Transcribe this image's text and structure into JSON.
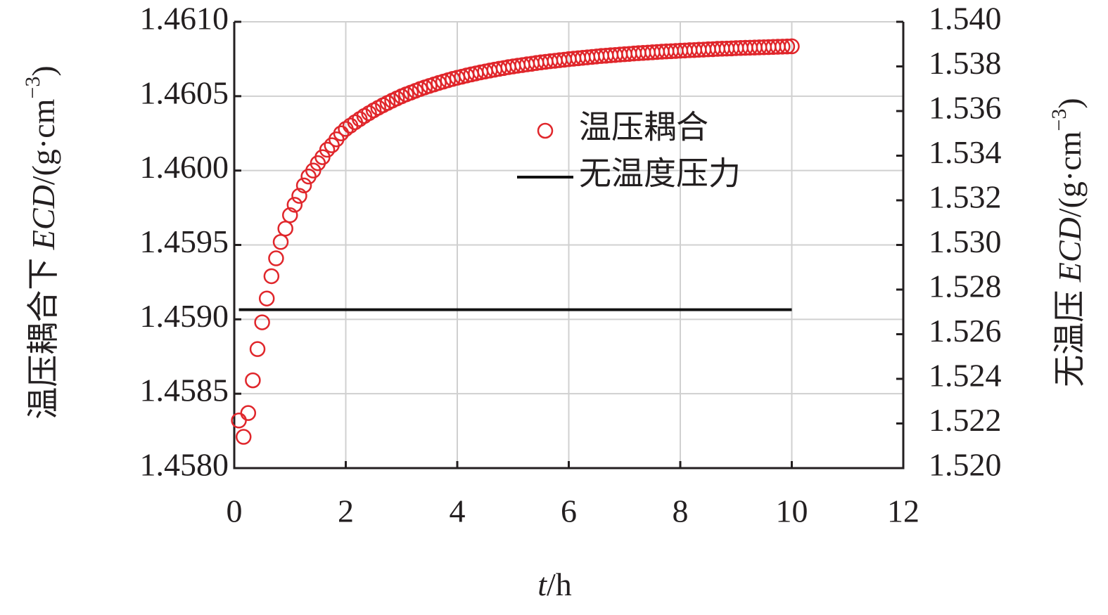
{
  "chart_data": {
    "type": "scatter",
    "x_label": [
      "t",
      "/h"
    ],
    "y_label": [
      "温压耦合下 ",
      "ECD",
      "/(g·cm",
      "−3",
      ")"
    ],
    "y2_label": [
      "无温压 ",
      "ECD",
      "/(g·cm",
      "−3",
      ")"
    ],
    "xlim": [
      0,
      12
    ],
    "xticks": [
      0,
      2,
      4,
      6,
      8,
      10,
      12
    ],
    "ylim": [
      1.458,
      1.461
    ],
    "yticks": [
      {
        "value": 1.458,
        "label": "1.4580"
      },
      1.4585,
      {
        "value": 1.459,
        "label": "1.4590"
      },
      1.4595,
      {
        "value": 1.46,
        "label": "1.4600"
      },
      1.4605,
      {
        "value": 1.461,
        "label": "1.4610"
      }
    ],
    "y2lim": [
      1.52,
      1.54
    ],
    "y2ticks": [
      {
        "value": 1.52,
        "label": "1.520"
      },
      1.522,
      1.524,
      1.526,
      1.528,
      {
        "value": 1.53,
        "label": "1.530"
      },
      1.532,
      1.534,
      1.536,
      1.538,
      {
        "value": 1.54,
        "label": "1.540"
      }
    ],
    "grid": true,
    "legend": "center",
    "series": [
      {
        "name": "温压耦合",
        "color": "#e0262b",
        "marker": "circle",
        "x": [
          0.083,
          0.167,
          0.25,
          0.333,
          0.417,
          0.5,
          0.583,
          0.667,
          0.75,
          0.833,
          0.917,
          1,
          1.083,
          1.167,
          1.25,
          1.333,
          1.417,
          1.5,
          1.583,
          1.667,
          1.75,
          1.833,
          1.917,
          2,
          2.083,
          2.167,
          2.25,
          2.333,
          2.417,
          2.5,
          2.583,
          2.667,
          2.75,
          2.833,
          2.917,
          3,
          3.083,
          3.167,
          3.25,
          3.333,
          3.417,
          3.5,
          3.583,
          3.667,
          3.75,
          3.833,
          3.917,
          4,
          4.083,
          4.167,
          4.25,
          4.333,
          4.417,
          4.5,
          4.583,
          4.667,
          4.75,
          4.833,
          4.917,
          5,
          5.083,
          5.167,
          5.25,
          5.333,
          5.417,
          5.5,
          5.583,
          5.667,
          5.75,
          5.833,
          5.917,
          6,
          6.083,
          6.167,
          6.25,
          6.333,
          6.417,
          6.5,
          6.583,
          6.667,
          6.75,
          6.833,
          6.917,
          7,
          7.083,
          7.167,
          7.25,
          7.333,
          7.417,
          7.5,
          7.583,
          7.667,
          7.75,
          7.833,
          7.917,
          8,
          8.083,
          8.167,
          8.25,
          8.333,
          8.417,
          8.5,
          8.583,
          8.667,
          8.75,
          8.833,
          8.917,
          9,
          9.083,
          9.167,
          9.25,
          9.333,
          9.417,
          9.5,
          9.583,
          9.667,
          9.75,
          9.833,
          9.917,
          10
        ],
        "values": [
          1.45832,
          1.45821,
          1.45837,
          1.45859,
          1.4588,
          1.45898,
          1.45914,
          1.45929,
          1.45941,
          1.45952,
          1.45961,
          1.4597,
          1.45977,
          1.45983,
          1.4599,
          1.45996,
          1.46,
          1.46005,
          1.46009,
          1.46014,
          1.46017,
          1.46021,
          1.46025,
          1.46028,
          1.460302,
          1.460325,
          1.460346,
          1.460367,
          1.460386,
          1.460405,
          1.460422,
          1.460439,
          1.460455,
          1.46047,
          1.460485,
          1.460499,
          1.460512,
          1.460524,
          1.460536,
          1.460548,
          1.460559,
          1.460569,
          1.460579,
          1.460589,
          1.460598,
          1.460607,
          1.460616,
          1.460624,
          1.460631,
          1.460639,
          1.460646,
          1.460653,
          1.46066,
          1.460666,
          1.460672,
          1.460678,
          1.460684,
          1.460689,
          1.460695,
          1.4607,
          1.460705,
          1.460709,
          1.460714,
          1.460718,
          1.460723,
          1.460727,
          1.460731,
          1.460735,
          1.460738,
          1.460742,
          1.460745,
          1.460749,
          1.460752,
          1.460755,
          1.460758,
          1.460761,
          1.460764,
          1.460767,
          1.46077,
          1.460772,
          1.460775,
          1.460777,
          1.46078,
          1.460782,
          1.460784,
          1.460787,
          1.460789,
          1.460791,
          1.460793,
          1.460795,
          1.460797,
          1.460799,
          1.460801,
          1.460802,
          1.460804,
          1.460806,
          1.460807,
          1.460809,
          1.46081,
          1.460812,
          1.460813,
          1.460815,
          1.460816,
          1.460818,
          1.460819,
          1.46082,
          1.460821,
          1.460823,
          1.460824,
          1.460825,
          1.460826,
          1.460827,
          1.460828,
          1.460829,
          1.46083,
          1.460831,
          1.460832,
          1.460833,
          1.460834,
          1.460835
        ]
      },
      {
        "name": "无温度压力",
        "color": "#111111",
        "marker": "line",
        "axis": "y2",
        "x": [
          0.083,
          10
        ],
        "values": [
          1.5271,
          1.5271
        ]
      }
    ]
  }
}
